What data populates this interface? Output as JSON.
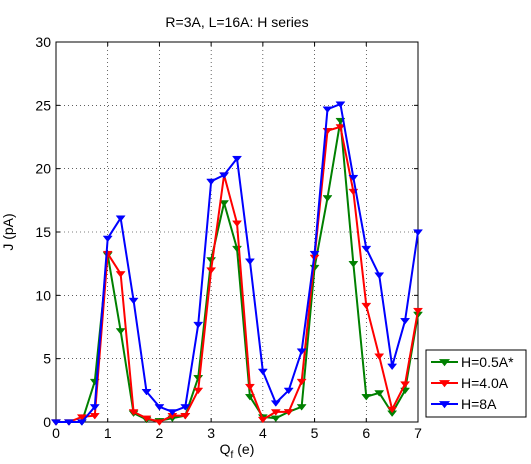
{
  "chart_data": {
    "type": "line",
    "title": "R=3A, L=16A: H series",
    "xlabel": "Q",
    "xlabel_subscript": "f",
    "xlabel_unit": "(e)",
    "ylabel": "J (pA)",
    "xlim": [
      0,
      7
    ],
    "ylim": [
      0,
      30
    ],
    "xticks": [
      0,
      1,
      2,
      3,
      4,
      5,
      6,
      7
    ],
    "yticks": [
      0,
      5,
      10,
      15,
      20,
      25,
      30
    ],
    "grid": true,
    "legend_position": "bottom-right outside",
    "marker": "triangle-down",
    "series": [
      {
        "name": "H=0.5A*",
        "color": "#008000",
        "x": [
          0,
          0.25,
          0.5,
          0.75,
          1,
          1.25,
          1.5,
          1.75,
          2,
          2.25,
          2.5,
          2.75,
          3,
          3.25,
          3.5,
          3.75,
          4,
          4.25,
          4.5,
          4.75,
          5,
          5.25,
          5.5,
          5.75,
          6,
          6.25,
          6.5,
          6.75,
          7
        ],
        "values": [
          0,
          0,
          0,
          3.2,
          13.2,
          7.2,
          0.7,
          0.2,
          0.1,
          0.3,
          0.5,
          3.5,
          12.8,
          17.3,
          13.7,
          2.0,
          0.4,
          0.3,
          0.8,
          1.2,
          12.2,
          17.7,
          23.8,
          12.5,
          2.0,
          2.3,
          0.7,
          2.5,
          8.5
        ]
      },
      {
        "name": "H=4.0A",
        "color": "#ff0000",
        "x": [
          0,
          0.25,
          0.5,
          0.75,
          1,
          1.25,
          1.5,
          1.75,
          2,
          2.25,
          2.5,
          2.75,
          3,
          3.25,
          3.5,
          3.75,
          4,
          4.25,
          4.5,
          4.75,
          5,
          5.25,
          5.5,
          5.75,
          6,
          6.25,
          6.5,
          6.75,
          7
        ],
        "values": [
          0,
          0,
          0.4,
          0.5,
          13.3,
          11.7,
          0.8,
          0.3,
          0.0,
          0.5,
          0.5,
          2.5,
          12.0,
          19.5,
          15.7,
          2.8,
          0.2,
          0.8,
          0.8,
          3.2,
          13.0,
          23.0,
          23.3,
          18.2,
          9.2,
          5.2,
          1.0,
          3.0,
          8.8
        ]
      },
      {
        "name": "H=8A",
        "color": "#0000ff",
        "x": [
          0,
          0.25,
          0.5,
          0.75,
          1,
          1.25,
          1.5,
          1.75,
          2,
          2.25,
          2.5,
          2.75,
          3,
          3.25,
          3.5,
          3.75,
          4,
          4.25,
          4.5,
          4.75,
          5,
          5.25,
          5.5,
          5.75,
          6,
          6.25,
          6.5,
          6.75,
          7
        ],
        "values": [
          0,
          0,
          0,
          1.2,
          14.5,
          16.1,
          9.6,
          2.4,
          1.2,
          0.8,
          1.2,
          7.7,
          19.0,
          19.5,
          20.8,
          12.7,
          4.0,
          1.5,
          2.5,
          5.6,
          13.3,
          24.7,
          25.1,
          19.3,
          13.7,
          11.6,
          4.4,
          8.0,
          15.0
        ]
      }
    ]
  }
}
